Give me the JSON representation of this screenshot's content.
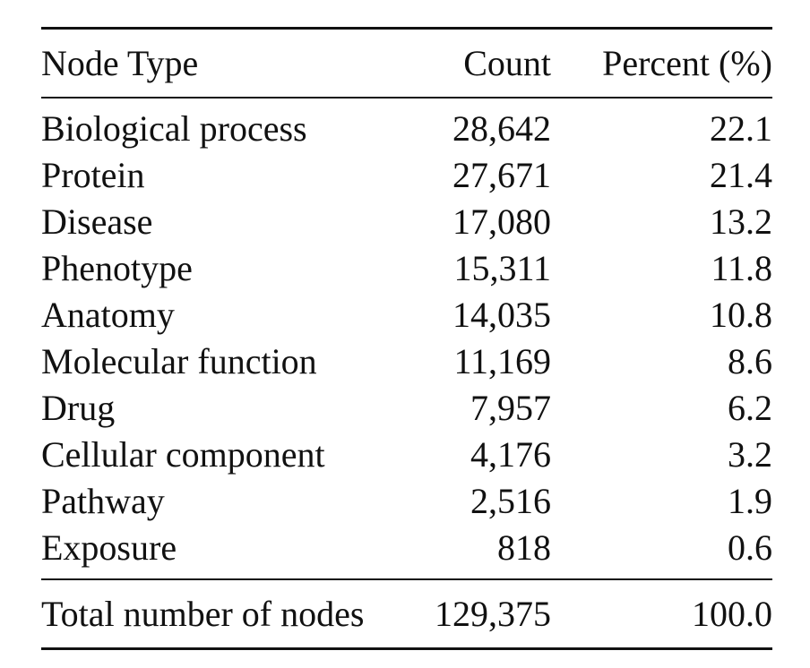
{
  "table": {
    "headers": {
      "node_type": "Node Type",
      "count": "Count",
      "percent": "Percent (%)"
    },
    "rows": [
      {
        "node_type": "Biological process",
        "count": "28,642",
        "percent": "22.1"
      },
      {
        "node_type": "Protein",
        "count": "27,671",
        "percent": "21.4"
      },
      {
        "node_type": "Disease",
        "count": "17,080",
        "percent": "13.2"
      },
      {
        "node_type": "Phenotype",
        "count": "15,311",
        "percent": "11.8"
      },
      {
        "node_type": "Anatomy",
        "count": "14,035",
        "percent": "10.8"
      },
      {
        "node_type": "Molecular function",
        "count": "11,169",
        "percent": "8.6"
      },
      {
        "node_type": "Drug",
        "count": "7,957",
        "percent": "6.2"
      },
      {
        "node_type": "Cellular component",
        "count": "4,176",
        "percent": "3.2"
      },
      {
        "node_type": "Pathway",
        "count": "2,516",
        "percent": "1.9"
      },
      {
        "node_type": "Exposure",
        "count": "818",
        "percent": "0.6"
      }
    ],
    "total": {
      "node_type": "Total number of nodes",
      "count": "129,375",
      "percent": "100.0"
    }
  }
}
